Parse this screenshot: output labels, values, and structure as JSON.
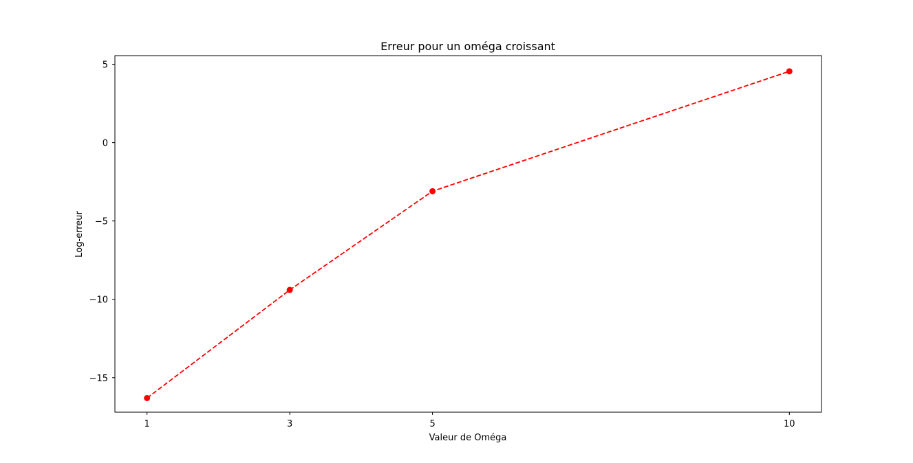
{
  "chart_data": {
    "type": "line",
    "title": "Erreur pour un oméga croissant",
    "xlabel": "Valeur de Oméga",
    "ylabel": "Log-erreur",
    "x": [
      1,
      3,
      5,
      10
    ],
    "x_ticks": [
      1,
      3,
      5,
      10
    ],
    "x_tick_labels": [
      "1",
      "3",
      "5",
      "10"
    ],
    "y_ticks": [
      -15,
      -10,
      -5,
      0,
      5
    ],
    "y_tick_labels": [
      "−15",
      "−10",
      "−5",
      "0",
      "5"
    ],
    "xlim": [
      0.55,
      10.45
    ],
    "ylim": [
      -17.2,
      5.55
    ],
    "series": [
      {
        "values": [
          -16.3,
          -9.4,
          -3.1,
          4.55
        ],
        "color": "#ff0000",
        "line_style": "dashed",
        "marker": "circle"
      }
    ],
    "grid": false
  }
}
